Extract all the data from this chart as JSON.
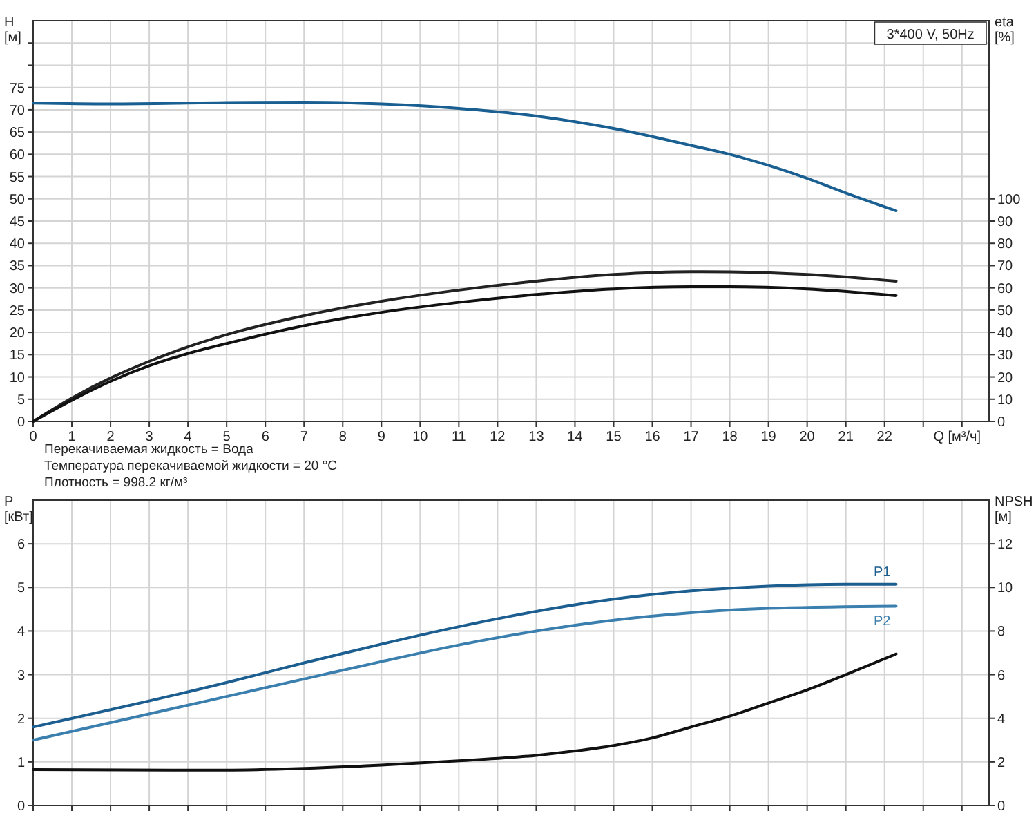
{
  "chart_data": [
    {
      "type": "line",
      "ylabel": "H [м]",
      "y2label": "eta [%]",
      "xlabel": "Q [м³/ч]",
      "xlim": [
        0,
        24.7
      ],
      "xticks": [
        0,
        1,
        2,
        3,
        4,
        5,
        6,
        7,
        8,
        9,
        10,
        11,
        12,
        13,
        14,
        15,
        16,
        17,
        18,
        19,
        20,
        21,
        22,
        {
          "value": 23,
          "label": null
        },
        {
          "value": 24,
          "label": null
        }
      ],
      "ylim": [
        0,
        90
      ],
      "yticks": [
        0,
        5,
        10,
        15,
        20,
        25,
        30,
        35,
        40,
        45,
        50,
        55,
        60,
        65,
        70,
        75,
        {
          "value": 80,
          "label": null
        },
        {
          "value": 85,
          "label": null
        }
      ],
      "y2lim": [
        0,
        180
      ],
      "y2ticks": [
        0,
        10,
        20,
        30,
        40,
        50,
        60,
        70,
        80,
        90,
        100
      ],
      "grid": true,
      "marker": "none",
      "line_style": "solid",
      "annotations": [
        "3*400 V, 50Hz",
        "Перекачиваемая жидкость = Вода",
        "Температура перекачиваемой жидкости = 20 °C",
        "Плотность = 998.2 кг/м³"
      ],
      "series": [
        {
          "color": "#1a5f91",
          "x": [
            0,
            2,
            5,
            7,
            9,
            11,
            13,
            15,
            17,
            18,
            19,
            20,
            21,
            22.3
          ],
          "values": [
            71.5,
            71.3,
            71.6,
            71.7,
            71.3,
            70.3,
            68.6,
            65.8,
            62,
            60,
            57.5,
            54.6,
            51.3,
            47.3
          ]
        },
        {
          "color": "#222222",
          "axis": "y2",
          "x": [
            0,
            1,
            2,
            3,
            4,
            5,
            7,
            9,
            11,
            13,
            15,
            17,
            18,
            20,
            22.3
          ],
          "values": [
            0,
            10.5,
            19.5,
            27,
            33.5,
            39,
            47.5,
            54,
            59,
            63,
            66,
            67.3,
            67.2,
            66,
            63
          ]
        },
        {
          "color": "#111111",
          "axis": "y2",
          "x": [
            0,
            1,
            2,
            3,
            4,
            5,
            7,
            9,
            11,
            13,
            15,
            17,
            18,
            20,
            22.3
          ],
          "values": [
            0,
            9.5,
            18,
            25,
            30.5,
            35,
            43,
            49,
            53.5,
            57,
            59.5,
            60.5,
            60.5,
            59.5,
            56.5
          ]
        }
      ]
    },
    {
      "type": "line",
      "ylabel": "P [кВт]",
      "y2label": "NPSH [м]",
      "xlim": [
        0,
        24.7
      ],
      "xticks": [
        0,
        1,
        2,
        3,
        4,
        5,
        6,
        7,
        8,
        9,
        10,
        11,
        12,
        13,
        14,
        15,
        16,
        17,
        18,
        19,
        20,
        21,
        22,
        23,
        24
      ],
      "tick_labels": "y",
      "ylim": [
        0,
        7
      ],
      "yticks": [
        0,
        1,
        2,
        3,
        4,
        5,
        6
      ],
      "y2lim": [
        0,
        14
      ],
      "y2ticks": [
        0,
        2,
        4,
        6,
        8,
        10,
        12
      ],
      "grid": true,
      "marker": "none",
      "line_style": "solid",
      "series": [
        {
          "name": "P1",
          "color": "#1b5e8f",
          "x": [
            0,
            5,
            7,
            9,
            11,
            13,
            15,
            17,
            19,
            21,
            22.3
          ],
          "values": [
            1.8,
            2.82,
            3.27,
            3.7,
            4.1,
            4.45,
            4.73,
            4.92,
            5.03,
            5.07,
            5.07
          ]
        },
        {
          "name": "P2",
          "color": "#3b7fae",
          "x": [
            0,
            5,
            7,
            9,
            11,
            13,
            15,
            17,
            19,
            22.3
          ],
          "values": [
            1.5,
            2.5,
            2.9,
            3.3,
            3.68,
            4,
            4.25,
            4.42,
            4.52,
            4.57
          ]
        },
        {
          "color": "#111111",
          "axis": "y2",
          "x": [
            0,
            5,
            7,
            9,
            11,
            13,
            14,
            15,
            16,
            17,
            18,
            19,
            20,
            21,
            22.3
          ],
          "values": [
            1.65,
            1.62,
            1.7,
            1.85,
            2.05,
            2.3,
            2.5,
            2.75,
            3.1,
            3.6,
            4.1,
            4.7,
            5.3,
            6,
            6.95
          ]
        }
      ]
    }
  ]
}
